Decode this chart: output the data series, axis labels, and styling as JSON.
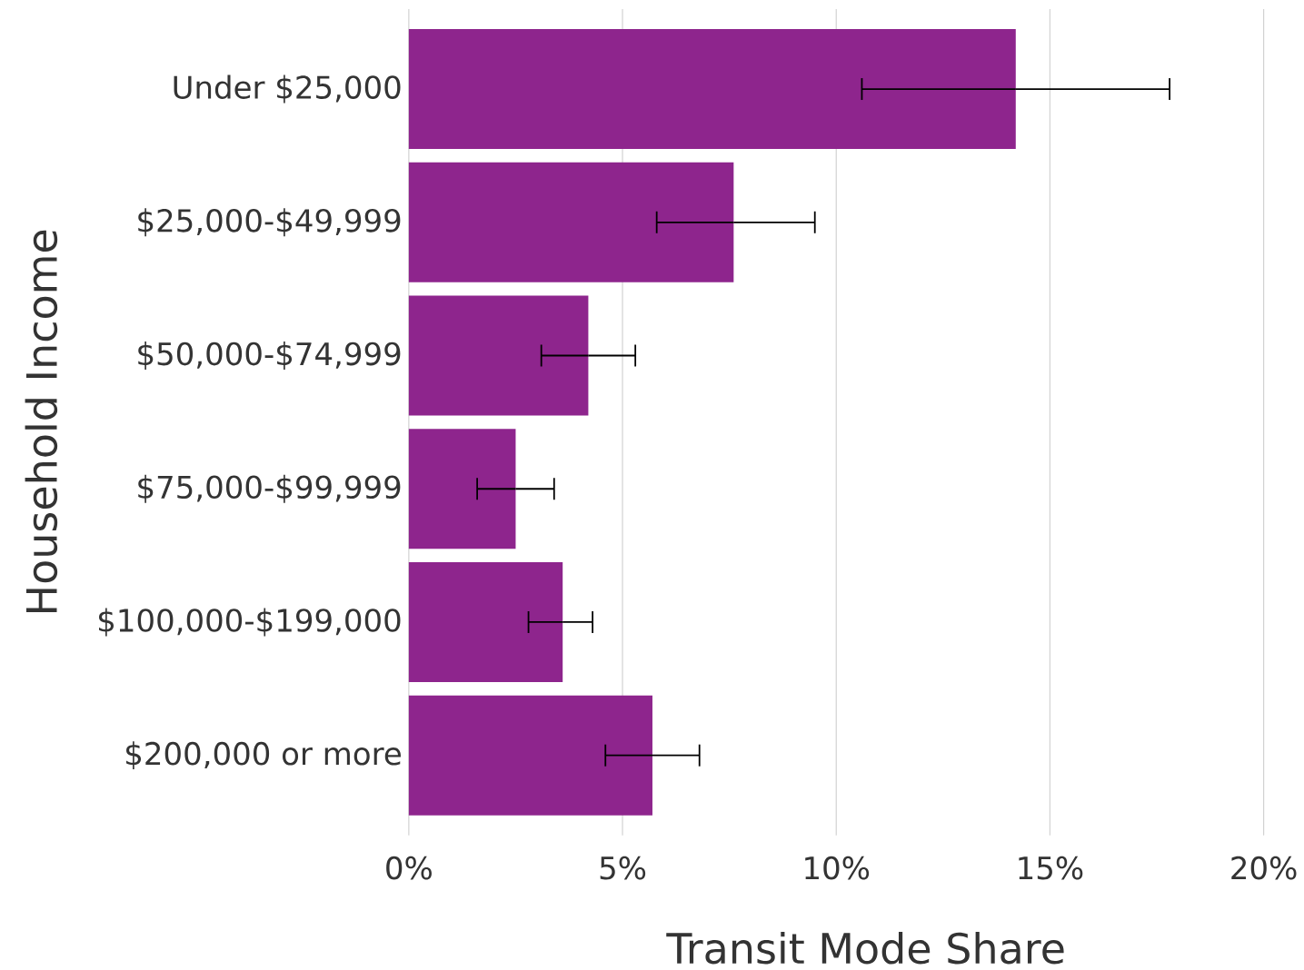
{
  "chart_data": {
    "type": "bar",
    "orientation": "horizontal",
    "xlabel": "Transit Mode Share",
    "ylabel": "Household Income",
    "categories": [
      "Under $25,000",
      "$25,000-$49,999",
      "$50,000-$74,999",
      "$75,000-$99,999",
      "$100,000-$199,000",
      "$200,000 or more"
    ],
    "values": [
      14.2,
      7.6,
      4.2,
      2.5,
      3.6,
      5.7
    ],
    "errors": [
      [
        10.6,
        17.8
      ],
      [
        5.8,
        9.5
      ],
      [
        3.1,
        5.3
      ],
      [
        1.6,
        3.4
      ],
      [
        2.8,
        4.3
      ],
      [
        4.6,
        6.8
      ]
    ],
    "color": "#8e258d",
    "xlim": [
      0,
      20
    ],
    "xticks": [
      {
        "value": 0,
        "label": "0%"
      },
      {
        "value": 5,
        "label": "5%"
      },
      {
        "value": 10,
        "label": "10%"
      },
      {
        "value": 15,
        "label": "15%"
      },
      {
        "value": 20,
        "label": "20%"
      }
    ],
    "grid": "x"
  }
}
